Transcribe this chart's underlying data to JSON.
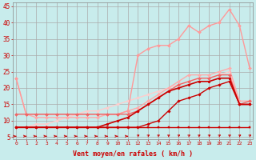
{
  "xlabel": "Vent moyen/en rafales ( km/h )",
  "background_color": "#c8ecec",
  "grid_color": "#aaaaaa",
  "x_ticks": [
    0,
    1,
    2,
    3,
    4,
    5,
    6,
    7,
    8,
    9,
    10,
    11,
    12,
    13,
    14,
    15,
    16,
    17,
    18,
    19,
    20,
    21,
    22,
    23
  ],
  "ylim": [
    4.5,
    46
  ],
  "xlim": [
    -0.3,
    23.3
  ],
  "yticks": [
    5,
    10,
    15,
    20,
    25,
    30,
    35,
    40,
    45
  ],
  "series": [
    {
      "x": [
        0,
        1,
        2,
        3,
        4,
        5,
        6,
        7,
        8,
        9,
        10,
        11,
        12,
        13,
        14,
        15,
        16,
        17,
        18,
        19,
        20,
        21,
        22,
        23
      ],
      "y": [
        8,
        8,
        8,
        8,
        8,
        8,
        8,
        8,
        8,
        8,
        8,
        8,
        8,
        8,
        8,
        8,
        8,
        8,
        8,
        8,
        8,
        8,
        8,
        8
      ],
      "color": "#cc0000",
      "linewidth": 1.0,
      "marker": "s",
      "markersize": 1.8,
      "zorder": 5
    },
    {
      "x": [
        0,
        1,
        2,
        3,
        4,
        5,
        6,
        7,
        8,
        9,
        10,
        11,
        12,
        13,
        14,
        15,
        16,
        17,
        18,
        19,
        20,
        21,
        22,
        23
      ],
      "y": [
        8,
        8,
        8,
        8,
        8,
        8,
        8,
        8,
        8,
        8,
        8,
        8,
        8,
        9,
        10,
        13,
        16,
        17,
        18,
        20,
        21,
        22,
        15,
        15
      ],
      "color": "#cc0000",
      "linewidth": 1.0,
      "marker": "D",
      "markersize": 1.8,
      "zorder": 5
    },
    {
      "x": [
        0,
        1,
        2,
        3,
        4,
        5,
        6,
        7,
        8,
        9,
        10,
        11,
        12,
        13,
        14,
        15,
        16,
        17,
        18,
        19,
        20,
        21,
        22,
        23
      ],
      "y": [
        8,
        8,
        8,
        8,
        8,
        8,
        8,
        8,
        8,
        9,
        10,
        11,
        13,
        15,
        17,
        19,
        20,
        21,
        22,
        22,
        23,
        23,
        15,
        15
      ],
      "color": "#cc0000",
      "linewidth": 1.2,
      "marker": "o",
      "markersize": 2.0,
      "zorder": 5
    },
    {
      "x": [
        0,
        1,
        2,
        3,
        4,
        5,
        6,
        7,
        8,
        9,
        10,
        11,
        12,
        13,
        14,
        15,
        16,
        17,
        18,
        19,
        20,
        21,
        22,
        23
      ],
      "y": [
        12,
        12,
        12,
        12,
        12,
        12,
        12,
        12,
        12,
        12,
        12,
        12,
        13,
        15,
        17,
        19,
        21,
        22,
        23,
        23,
        24,
        24,
        15,
        16
      ],
      "color": "#ee6666",
      "linewidth": 1.0,
      "marker": "D",
      "markersize": 2.0,
      "zorder": 4
    },
    {
      "x": [
        0,
        1,
        2,
        3,
        4,
        5,
        6,
        7,
        8,
        9,
        10,
        11,
        12,
        13,
        14,
        15,
        16,
        17,
        18,
        19,
        20,
        21,
        22,
        23
      ],
      "y": [
        23,
        12,
        11,
        11,
        11,
        11,
        11,
        11,
        11,
        12,
        12,
        13,
        14,
        16,
        18,
        20,
        22,
        24,
        24,
        24,
        25,
        26,
        16,
        16
      ],
      "color": "#ffaaaa",
      "linewidth": 1.0,
      "marker": "D",
      "markersize": 2.0,
      "zorder": 3
    },
    {
      "x": [
        0,
        1,
        2,
        3,
        4,
        5,
        6,
        7,
        8,
        9,
        10,
        11,
        12,
        13,
        14,
        15,
        16,
        17,
        18,
        19,
        20,
        21,
        22,
        23
      ],
      "y": [
        23,
        12,
        12,
        12,
        12,
        12,
        12,
        12,
        12,
        12,
        12,
        13,
        30,
        32,
        33,
        33,
        35,
        39,
        37,
        39,
        40,
        44,
        39,
        26
      ],
      "color": "#ff9999",
      "linewidth": 1.0,
      "marker": "D",
      "markersize": 2.0,
      "zorder": 3
    },
    {
      "x": [
        0,
        1,
        2,
        3,
        4,
        5,
        6,
        7,
        8,
        9,
        10,
        11,
        12,
        13,
        14,
        15,
        16,
        17,
        18,
        19,
        20,
        21,
        22,
        23
      ],
      "y": [
        8,
        8,
        9,
        9,
        10,
        11,
        12,
        13,
        13,
        14,
        15,
        16,
        17,
        18,
        19,
        20,
        21,
        22,
        23,
        23,
        24,
        25,
        16,
        16
      ],
      "color": "#ffcccc",
      "linewidth": 1.0,
      "marker": "D",
      "markersize": 1.8,
      "zorder": 2
    }
  ],
  "arrow_threshold": 11,
  "wind_arrows": {
    "x": [
      0,
      1,
      2,
      3,
      4,
      5,
      6,
      7,
      8,
      9,
      10,
      11,
      12,
      13,
      14,
      15,
      16,
      17,
      18,
      19,
      20,
      21,
      22,
      23
    ],
    "y_base": 5.3,
    "color": "#cc0000"
  }
}
